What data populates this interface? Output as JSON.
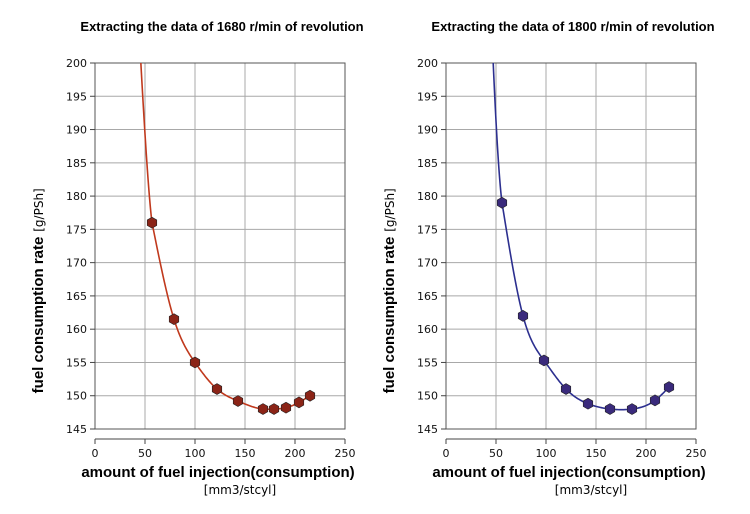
{
  "chart_data": [
    {
      "type": "scatter",
      "title": "Extracting the data of 1680 r/min of revolution",
      "xlabel": "amount of fuel injection(consumption)",
      "xunit": "[mm3/stcyl]",
      "ylabel": "fuel consumption rate",
      "yunit": "[g/PSh]",
      "xlim": [
        0,
        250
      ],
      "ylim": [
        145,
        200
      ],
      "xticks": [
        0,
        50,
        100,
        150,
        200,
        250
      ],
      "yticks": [
        145,
        150,
        155,
        160,
        165,
        170,
        175,
        180,
        185,
        190,
        195,
        200
      ],
      "grid": true,
      "color": "#c0391d",
      "marker_color": "#8b2417",
      "points": [
        {
          "x": 57,
          "y": 176
        },
        {
          "x": 79,
          "y": 161.5
        },
        {
          "x": 100,
          "y": 155
        },
        {
          "x": 122,
          "y": 151
        },
        {
          "x": 143,
          "y": 149.2
        },
        {
          "x": 168,
          "y": 148
        },
        {
          "x": 179,
          "y": 148
        },
        {
          "x": 191,
          "y": 148.2
        },
        {
          "x": 204,
          "y": 149
        },
        {
          "x": 215,
          "y": 150
        }
      ]
    },
    {
      "type": "scatter",
      "title": "Extracting the data of 1800 r/min of revolution",
      "xlabel": "amount of fuel injection(consumption)",
      "xunit": "[mm3/stcyl]",
      "ylabel": "fuel consumption rate",
      "yunit": "[g/PSh]",
      "xlim": [
        0,
        250
      ],
      "ylim": [
        145,
        200
      ],
      "xticks": [
        0,
        50,
        100,
        150,
        200,
        250
      ],
      "yticks": [
        145,
        150,
        155,
        160,
        165,
        170,
        175,
        180,
        185,
        190,
        195,
        200
      ],
      "grid": true,
      "color": "#2c2f8f",
      "marker_color": "#3a2a7c",
      "points": [
        {
          "x": 56,
          "y": 179
        },
        {
          "x": 77,
          "y": 162
        },
        {
          "x": 98,
          "y": 155.3
        },
        {
          "x": 120,
          "y": 151
        },
        {
          "x": 142,
          "y": 148.8
        },
        {
          "x": 164,
          "y": 148
        },
        {
          "x": 186,
          "y": 148
        },
        {
          "x": 209,
          "y": 149.3
        },
        {
          "x": 223,
          "y": 151.3
        }
      ]
    }
  ]
}
